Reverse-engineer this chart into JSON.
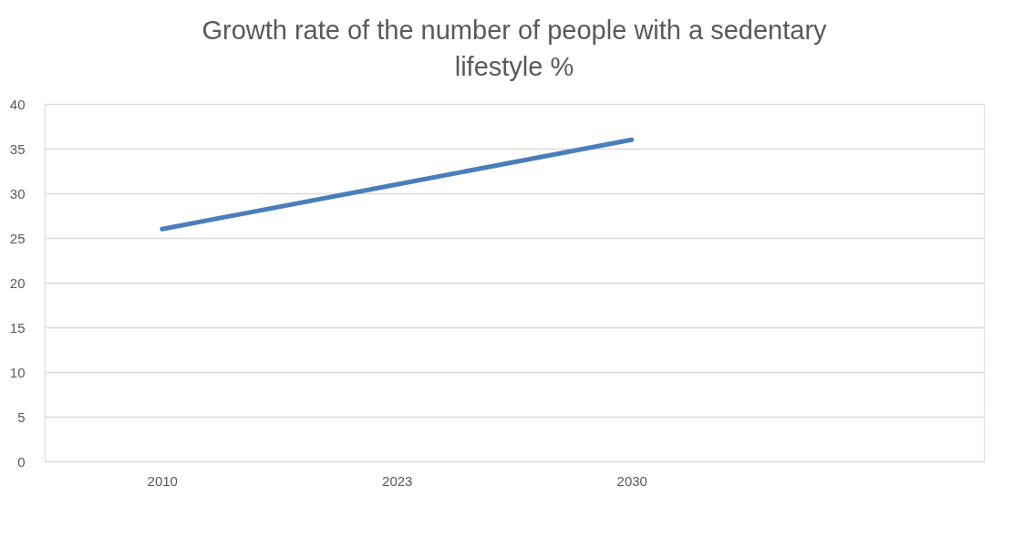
{
  "chart_data": {
    "type": "line",
    "title": "Growth rate of the number of people with a sedentary lifestyle %",
    "categories": [
      "2010",
      "2023",
      "2030",
      null
    ],
    "series": [
      {
        "color": "#4a7ebb",
        "values": [
          26,
          31,
          36,
          null
        ]
      }
    ],
    "ylim": [
      0,
      40
    ],
    "yticks": [
      0,
      5,
      10,
      15,
      20,
      25,
      30,
      35,
      40
    ],
    "grid": "y",
    "marker": "none",
    "line_style": "solid"
  }
}
